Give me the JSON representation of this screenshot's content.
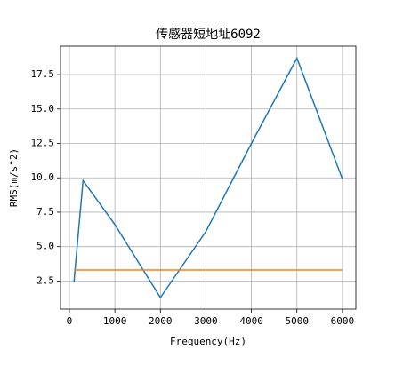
{
  "chart_data": {
    "type": "line",
    "title": "传感器短地址6092",
    "x_label": "Frequency(Hz)",
    "y_label": "RMS(m/s^2)",
    "series": [
      {
        "color": "#1f77b4",
        "x": [
          100,
          300,
          1000,
          2000,
          3000,
          4000,
          5000,
          6000
        ],
        "values": [
          2.4,
          9.8,
          6.6,
          1.3,
          6.1,
          12.5,
          18.7,
          9.9
        ]
      },
      {
        "color": "#ff7f0e",
        "x": [
          100,
          6000
        ],
        "values": [
          3.3,
          3.3
        ]
      }
    ],
    "xlim": [
      -195,
      6295
    ],
    "xticks": [
      0,
      1000,
      2000,
      3000,
      4000,
      5000,
      6000
    ],
    "ylim": [
      0.46,
      19.57
    ],
    "yticks": [
      2.5,
      5.0,
      7.5,
      10.0,
      12.5,
      15.0,
      17.5
    ],
    "grid": true
  }
}
